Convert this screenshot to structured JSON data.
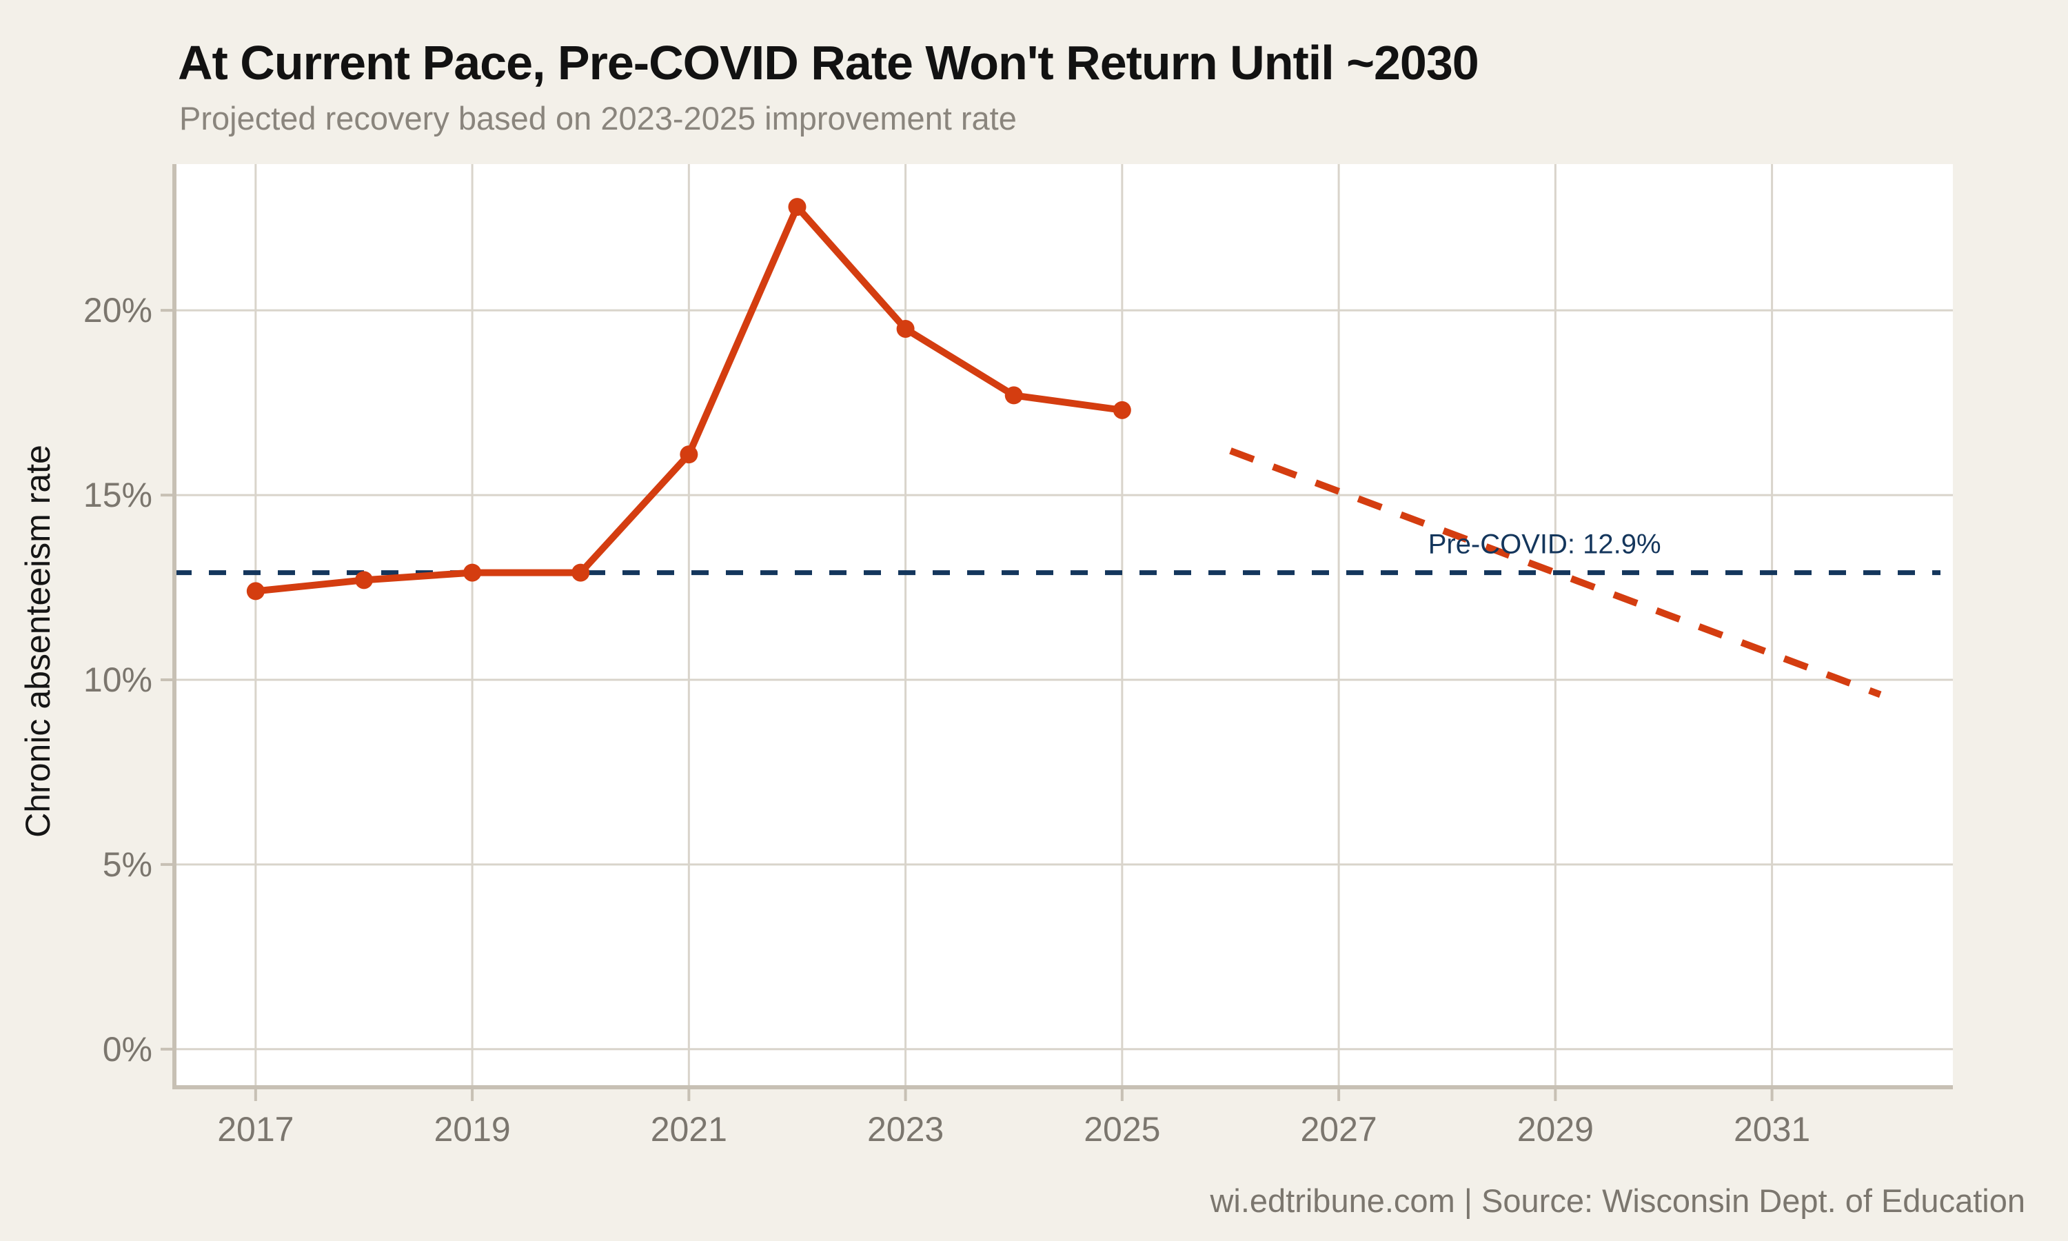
{
  "header": {
    "title": "At Current Pace, Pre-COVID Rate Won't Return Until ~2030",
    "subtitle": "Projected recovery based on 2023-2025 improvement rate"
  },
  "footer": {
    "credit": "wi.edtribune.com | Source: Wisconsin Dept. of Education"
  },
  "colors": {
    "background": "#f3f0e9",
    "plot_background": "#ffffff",
    "grid": "#d9d4cb",
    "spine": "#c7c0b4",
    "actual_line": "#d43d10",
    "projection_line": "#d43d10",
    "precovid_line": "#14365c",
    "annotation": "#14365c",
    "tick_label": "#7b766e",
    "title": "#121212",
    "subtitle": "#8a857d",
    "footer": "#7b766e",
    "axis_title": "#151515"
  },
  "chart_data": {
    "type": "line",
    "title": "At Current Pace, Pre-COVID Rate Won't Return Until ~2030",
    "subtitle": "Projected recovery based on 2023-2025 improvement rate",
    "xlabel": "",
    "ylabel": "Chronic absenteeism rate",
    "grid": true,
    "xlim": [
      2016.25,
      2032.67
    ],
    "ylim": [
      -1.03,
      23.96
    ],
    "x_ticks": [
      2017,
      2019,
      2021,
      2023,
      2025,
      2027,
      2029,
      2031
    ],
    "y_ticks": [
      0,
      5,
      10,
      15,
      20
    ],
    "y_tick_labels": [
      "0%",
      "5%",
      "10%",
      "15%",
      "20%"
    ],
    "series": [
      {
        "name": "actual",
        "style": "solid",
        "markers": true,
        "x": [
          2017,
          2018,
          2019,
          2020,
          2021,
          2022,
          2023,
          2024,
          2025
        ],
        "values": [
          12.4,
          12.7,
          12.9,
          12.9,
          16.1,
          22.8,
          19.5,
          17.7,
          17.3
        ]
      },
      {
        "name": "projected",
        "style": "dashed",
        "markers": false,
        "x": [
          2026,
          2027,
          2028,
          2029,
          2030,
          2031,
          2032
        ],
        "values": [
          16.2,
          15.1,
          14.0,
          12.9,
          11.8,
          10.7,
          9.6
        ]
      }
    ],
    "reference_line": {
      "value": 12.9,
      "label": "Pre-COVID: 12.9%",
      "style": "dashed",
      "label_x": 2028.9
    }
  }
}
